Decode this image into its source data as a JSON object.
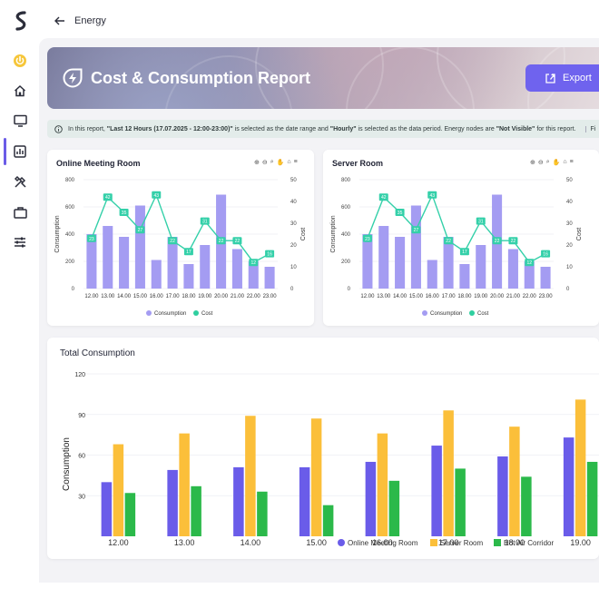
{
  "header": {
    "back_label": "Energy"
  },
  "page": {
    "title": "Cost & Consumption Report",
    "export_label": "Export"
  },
  "info": {
    "prefix": "In this report, ",
    "range": "\"Last 12 Hours (17.07.2025 - 12:00-23:00)\"",
    "mid1": " is selected as the date range and ",
    "period": "\"Hourly\"",
    "mid2": " is selected as the data period. Energy nodes are ",
    "visibility": "\"Not Visible\"",
    "suffix": " for this report.",
    "overflow": "Fi"
  },
  "sidebar": {
    "icons": [
      "power-icon",
      "home-icon",
      "monitor-icon",
      "report-icon",
      "tools-icon",
      "briefcase-icon",
      "sliders-icon"
    ],
    "active": "report-icon",
    "accent": "#6b5ce7"
  },
  "colors": {
    "consumption": "#a49cf2",
    "cost": "#2fcf9f",
    "line": "#34d0a9",
    "online": "#6a5ce9",
    "server": "#fbbf3a",
    "hot": "#2bb94a"
  },
  "chart_data": [
    {
      "type": "bar",
      "title": "Online Meeting Room",
      "categories": [
        "12.00",
        "13.00",
        "14.00",
        "15.00",
        "16.00",
        "17.00",
        "18.00",
        "19.00",
        "20.00",
        "21.00",
        "22.00",
        "23.00"
      ],
      "series": [
        {
          "name": "Consumption",
          "type": "bar",
          "axis": "left",
          "values": [
            400,
            460,
            380,
            610,
            210,
            380,
            180,
            320,
            690,
            290,
            200,
            160
          ]
        },
        {
          "name": "Cost",
          "type": "line",
          "axis": "right",
          "values": [
            23,
            42,
            35,
            27,
            43,
            22,
            17,
            31,
            22,
            22,
            12,
            16
          ]
        }
      ],
      "ylabel": "Consumption",
      "y2label": "Cost",
      "ylim": [
        0,
        800
      ],
      "y2lim": [
        0,
        50
      ],
      "yticks": [
        0,
        200,
        400,
        600,
        800
      ],
      "y2ticks": [
        0,
        10,
        20,
        30,
        40,
        50
      ],
      "legend": "bottom",
      "grid": true
    },
    {
      "type": "bar",
      "title": "Server Room",
      "categories": [
        "12.00",
        "13.00",
        "14.00",
        "15.00",
        "16.00",
        "17.00",
        "18.00",
        "19.00",
        "20.00",
        "21.00",
        "22.00",
        "23.00"
      ],
      "series": [
        {
          "name": "Consumption",
          "type": "bar",
          "axis": "left",
          "values": [
            400,
            460,
            380,
            610,
            210,
            380,
            180,
            320,
            690,
            290,
            200,
            160
          ]
        },
        {
          "name": "Cost",
          "type": "line",
          "axis": "right",
          "values": [
            23,
            42,
            35,
            27,
            43,
            22,
            17,
            31,
            22,
            22,
            12,
            16
          ]
        }
      ],
      "ylabel": "Consumption",
      "y2label": "Cost",
      "ylim": [
        0,
        800
      ],
      "y2lim": [
        0,
        50
      ],
      "yticks": [
        0,
        200,
        400,
        600,
        800
      ],
      "y2ticks": [
        0,
        10,
        20,
        30,
        40,
        50
      ],
      "legend": "bottom",
      "grid": true
    },
    {
      "type": "bar",
      "title": "Total Consumption",
      "categories": [
        "12.00",
        "13.00",
        "14.00",
        "15.00",
        "16.00",
        "17.00",
        "18.00",
        "19.00"
      ],
      "series": [
        {
          "name": "Online Meeting Room",
          "values": [
            40,
            49,
            51,
            51,
            55,
            67,
            59,
            73
          ]
        },
        {
          "name": "Server Room",
          "values": [
            68,
            76,
            89,
            87,
            76,
            93,
            81,
            101
          ]
        },
        {
          "name": "Hot Air Corridor",
          "values": [
            32,
            37,
            33,
            23,
            41,
            50,
            44,
            55
          ]
        }
      ],
      "ylabel": "Consumption",
      "ylim": [
        0,
        120
      ],
      "yticks": [
        30,
        60,
        90,
        120
      ],
      "legend": "bottom",
      "grid": true
    }
  ]
}
